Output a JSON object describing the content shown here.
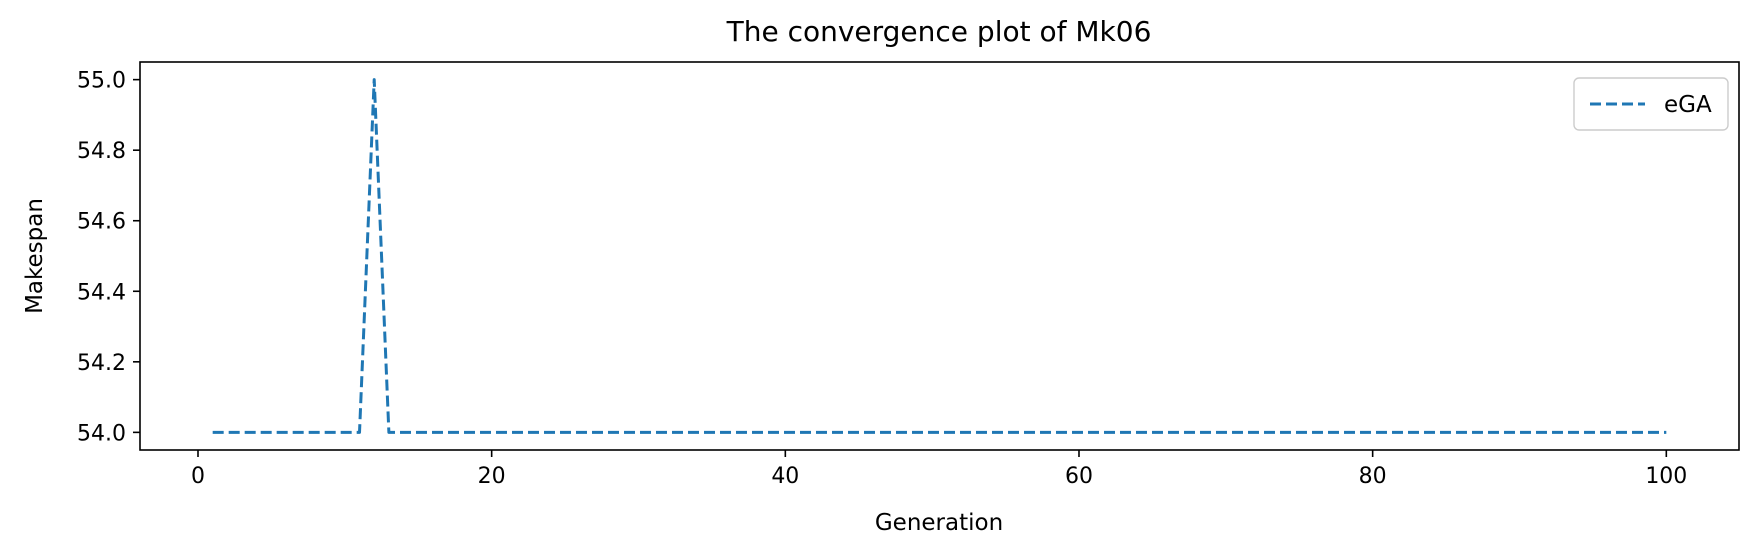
{
  "chart_data": {
    "type": "line",
    "title": "The convergence plot of Mk06",
    "xlabel": "Generation",
    "ylabel": "Makespan",
    "xlim": [
      -3.95,
      104.95
    ],
    "ylim": [
      53.95,
      55.05
    ],
    "xticks": [
      0,
      20,
      40,
      60,
      80,
      100
    ],
    "xtick_labels": [
      "0",
      "20",
      "40",
      "60",
      "80",
      "100"
    ],
    "yticks": [
      54.0,
      54.2,
      54.4,
      54.6,
      54.8,
      55.0
    ],
    "ytick_labels": [
      "54.0",
      "54.2",
      "54.4",
      "54.6",
      "54.8",
      "55.0"
    ],
    "grid": false,
    "legend_position": "upper-right",
    "series": [
      {
        "name": "eGA",
        "color": "#1f77b4",
        "style": "dashed",
        "x": [
          1,
          11,
          12,
          13,
          100
        ],
        "y": [
          54.0,
          54.0,
          55.0,
          54.0,
          54.0
        ]
      }
    ]
  }
}
